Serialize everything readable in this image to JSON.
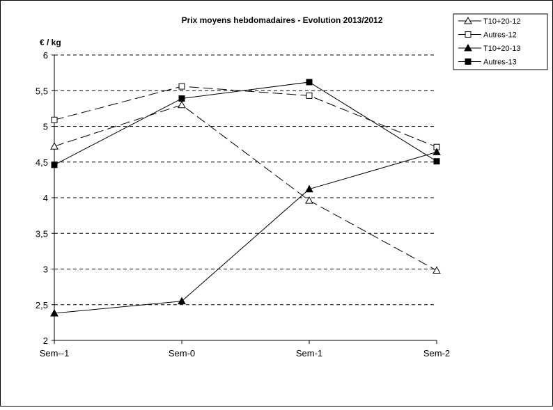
{
  "chart_data": {
    "type": "line",
    "title": "Prix moyens hebdomadaires - Evolution  2013/2012",
    "ylabel": "€ / kg",
    "xlabel": "",
    "categories": [
      "Sem--1",
      "Sem-0",
      "Sem-1",
      "Sem-2"
    ],
    "ylim": [
      2,
      6
    ],
    "yticks": [
      "2",
      "2,5",
      "3",
      "3,5",
      "4",
      "4,5",
      "5",
      "5,5",
      "6"
    ],
    "grid": true,
    "legend_position": "top-right",
    "series": [
      {
        "name": "T10+20-12",
        "values": [
          4.72,
          5.3,
          3.96,
          2.98
        ],
        "marker": "triangle-open",
        "dash": "long-dash",
        "color": "#000000"
      },
      {
        "name": "Autres-12",
        "values": [
          5.09,
          5.56,
          5.43,
          4.71
        ],
        "marker": "square-open",
        "dash": "long-dash",
        "color": "#000000"
      },
      {
        "name": "T10+20-13",
        "values": [
          2.38,
          2.55,
          4.12,
          4.64
        ],
        "marker": "triangle-filled",
        "dash": "solid",
        "color": "#000000"
      },
      {
        "name": "Autres-13",
        "values": [
          4.46,
          5.39,
          5.62,
          4.51
        ],
        "marker": "square-filled",
        "dash": "solid",
        "color": "#000000"
      }
    ]
  }
}
